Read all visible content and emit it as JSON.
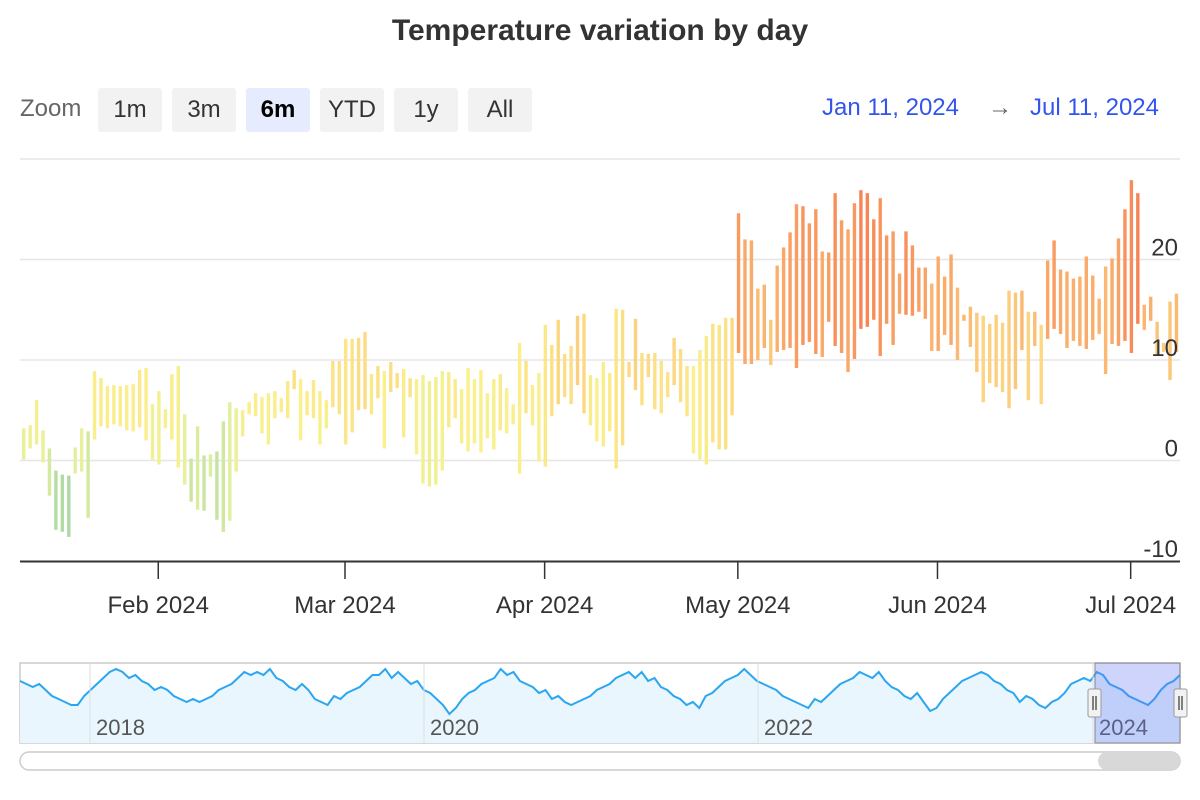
{
  "title": "Temperature variation by day",
  "zoom": {
    "label": "Zoom",
    "buttons": [
      "1m",
      "3m",
      "6m",
      "YTD",
      "1y",
      "All"
    ],
    "selected": "6m"
  },
  "range": {
    "from": "Jan 11, 2024",
    "to": "Jul 11, 2024",
    "arrow": "→"
  },
  "colors": {
    "accent": "#3355ee",
    "navigator_line": "#2ba6f0",
    "navigator_fill": "#eaf6fd",
    "navigator_mask": "#c6ccfb",
    "grid": "#e6e6e6"
  },
  "chart_data": {
    "type": "columnrange",
    "title": "Temperature variation by day",
    "x_range": [
      "2024-01-11",
      "2024-07-11"
    ],
    "ylim": [
      -10,
      30
    ],
    "y_ticks": [
      -10,
      0,
      10,
      20
    ],
    "x_ticks": [
      "Feb 2024",
      "Mar 2024",
      "Apr 2024",
      "May 2024",
      "Jun 2024",
      "Jul 2024"
    ],
    "color_scale": "low values green/yellow, high values orange/red",
    "grid": true,
    "series": [
      {
        "low": [
          0.1,
          1.2,
          1.6,
          -0.2,
          -3.5,
          -6.9,
          -7.1,
          -7.6,
          -1.3,
          -1.1,
          -5.7,
          2.1,
          3.4,
          3.2,
          3.6,
          3.4,
          3.0,
          2.9,
          3.3,
          2.0,
          0.1,
          -0.4,
          3.2,
          2.1,
          -0.7,
          -2.4,
          -4.1,
          -4.9,
          -5.0,
          -1.6,
          -5.9,
          -7.1,
          -6.0,
          -1.1,
          2.4,
          4.6,
          4.4,
          2.7,
          1.6,
          4.2,
          4.8,
          4.2,
          7.1,
          2.0,
          4.5,
          4.2,
          1.6,
          3.2,
          5.3,
          4.6,
          1.6,
          2.8,
          5.0,
          5.1,
          4.6,
          6.2,
          1.2,
          6.8,
          7.2,
          2.3,
          6.3,
          0.6,
          -2.3,
          -2.6,
          -2.4,
          -1.0,
          3.3,
          4.2,
          1.7,
          0.9,
          1.7,
          0.8,
          2.2,
          1.1,
          3.0,
          2.7,
          3.6,
          -1.3,
          4.7,
          3.5,
          -0.1,
          -0.6,
          4.4,
          5.6,
          6.3,
          5.6,
          7.5,
          4.7,
          3.5,
          1.9,
          1.4,
          2.9,
          -0.8,
          1.5,
          8.3,
          7.0,
          5.5,
          8.3,
          5.1,
          4.7,
          6.3,
          7.5,
          5.8,
          4.4,
          0.7,
          0.1,
          -0.4,
          1.8,
          1.1,
          1.1,
          4.5,
          10.7,
          9.6,
          9.6,
          10.0,
          11.2,
          9.5,
          10.8,
          11.0,
          11.2,
          9.2,
          11.5,
          11.8,
          10.6,
          10.3,
          13.8,
          11.4,
          10.7,
          8.8,
          10.1,
          13.1,
          13.3,
          14.0,
          10.4,
          13.6,
          11.5,
          14.6,
          14.5,
          14.4,
          14.8,
          14.1,
          10.9,
          10.9,
          12.5,
          11.5,
          10.0,
          13.9,
          11.3,
          8.8,
          5.8,
          7.7,
          7.3,
          6.8,
          5.2,
          7.1,
          11.0,
          6.0,
          11.4,
          5.6,
          12.1,
          13.1,
          12.6,
          11.2,
          11.9,
          11.4,
          11.1,
          12.0,
          12.6,
          8.6,
          11.6,
          11.4,
          11.9,
          10.7,
          13.6,
          13.0,
          13.9,
          10.5,
          10.8,
          8.0,
          10.8,
          10.2,
          9.0,
          10.7,
          11.9,
          11.4,
          11.9,
          10.8,
          14.9
        ],
        "high": [
          3.2,
          3.5,
          6.0,
          3.0,
          1.2,
          -1.0,
          -1.4,
          -1.5,
          1.3,
          3.2,
          2.9,
          8.9,
          8.2,
          7.4,
          7.5,
          7.4,
          7.5,
          7.6,
          9.0,
          9.2,
          5.6,
          6.9,
          5.1,
          8.6,
          9.4,
          4.6,
          0.2,
          3.4,
          0.5,
          0.6,
          0.9,
          3.9,
          5.8,
          5.2,
          5.0,
          5.8,
          6.7,
          6.3,
          6.7,
          6.9,
          6.2,
          7.9,
          9.0,
          8.1,
          6.9,
          8.0,
          6.9,
          6.0,
          9.9,
          9.9,
          12.1,
          12.1,
          12.2,
          12.8,
          8.6,
          9.4,
          8.9,
          9.8,
          8.7,
          9.1,
          8.2,
          8.1,
          8.5,
          7.9,
          8.3,
          8.9,
          8.8,
          8.1,
          7.1,
          9.2,
          8.1,
          9.0,
          6.7,
          8.1,
          8.6,
          7.2,
          5.6,
          11.7,
          9.9,
          7.5,
          8.7,
          13.5,
          11.5,
          14.0,
          10.6,
          11.4,
          14.4,
          14.6,
          8.5,
          8.2,
          9.8,
          8.7,
          15.1,
          15.0,
          9.8,
          14.1,
          10.7,
          10.6,
          10.7,
          9.9,
          8.8,
          12.2,
          11.1,
          9.4,
          9.4,
          11.0,
          12.4,
          13.6,
          13.5,
          14.2,
          14.2,
          24.6,
          22.0,
          21.9,
          17.1,
          17.5,
          14.0,
          19.4,
          21.2,
          22.7,
          25.5,
          25.3,
          23.6,
          25.0,
          20.8,
          20.7,
          26.6,
          23.9,
          23.0,
          25.6,
          26.9,
          26.6,
          24.0,
          26.1,
          22.4,
          22.8,
          18.6,
          22.8,
          21.4,
          19.2,
          19.2,
          17.6,
          20.3,
          18.3,
          20.5,
          17.2,
          14.5,
          15.3,
          14.7,
          14.4,
          13.6,
          14.5,
          13.7,
          16.9,
          16.7,
          16.9,
          14.8,
          14.8,
          13.5,
          19.9,
          21.9,
          19.0,
          18.8,
          18.1,
          18.3,
          20.3,
          18.4,
          16.1,
          19.3,
          20.1,
          22.1,
          25.0,
          27.9,
          26.6,
          15.5,
          16.3,
          13.8,
          11.7,
          15.8,
          16.6,
          16.9,
          17.2,
          16.9,
          13.3,
          16.3,
          20.5,
          18.0,
          18.8
        ]
      }
    ]
  },
  "navigator": {
    "labels": [
      "2018",
      "2020",
      "2022",
      "2024"
    ],
    "values": [
      19,
      18,
      17,
      18,
      16,
      14,
      13,
      12,
      11,
      11,
      14,
      16,
      18,
      20,
      22,
      23,
      22,
      20,
      21,
      19,
      18,
      16,
      17,
      16,
      14,
      13,
      12,
      13,
      12,
      13,
      14,
      16,
      17,
      18,
      20,
      22,
      21,
      22,
      21,
      23,
      20,
      19,
      17,
      16,
      18,
      16,
      13,
      12,
      11,
      14,
      13,
      15,
      16,
      17,
      19,
      21,
      21,
      23,
      20,
      22,
      20,
      18,
      19,
      16,
      15,
      13,
      11,
      8,
      10,
      13,
      15,
      16,
      18,
      19,
      20,
      23,
      21,
      22,
      19,
      18,
      17,
      15,
      16,
      13,
      14,
      12,
      11,
      12,
      13,
      14,
      16,
      17,
      18,
      20,
      21,
      22,
      20,
      22,
      19,
      20,
      17,
      16,
      14,
      13,
      11,
      12,
      10,
      14,
      15,
      17,
      19,
      20,
      21,
      23,
      21,
      19,
      18,
      17,
      16,
      14,
      13,
      12,
      11,
      10,
      13,
      12,
      14,
      16,
      18,
      19,
      20,
      22,
      21,
      20,
      22,
      19,
      17,
      16,
      14,
      13,
      15,
      12,
      9,
      10,
      13,
      15,
      17,
      19,
      20,
      21,
      22,
      21,
      19,
      18,
      16,
      15,
      12,
      14,
      13,
      11,
      10,
      12,
      13,
      15,
      18,
      19,
      20,
      19,
      22,
      21,
      18,
      17,
      16,
      14,
      13,
      12,
      11,
      13,
      16,
      18,
      19,
      21
    ]
  }
}
